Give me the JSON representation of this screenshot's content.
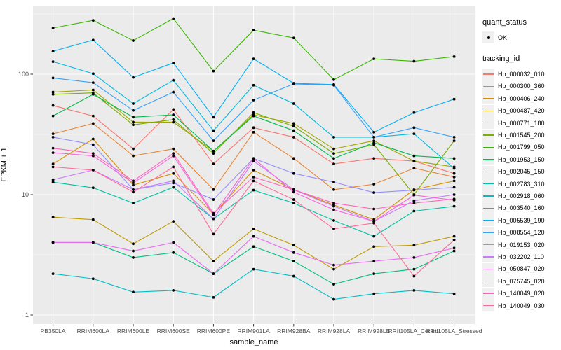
{
  "panel": {
    "bg_color": "#EBEBEB",
    "grid_color": "#FFFFFF",
    "axis_text_color": "#4D4D4D",
    "tick_color": "#333333",
    "point_color": "#000000"
  },
  "legend": {
    "quant_status_title": "quant_status",
    "quant_status_items": [
      {
        "label": "OK",
        "symbol": "black-point"
      }
    ],
    "tracking_title": "tracking_id"
  },
  "chart_data": {
    "type": "line",
    "title": "",
    "xlabel": "sample_name",
    "ylabel": "FPKM + 1",
    "y_scale": "log10",
    "y_ticks": [
      1,
      10,
      100
    ],
    "y_tick_labels": [
      "1",
      "10",
      "100"
    ],
    "y_minor_ticks": [
      3.162,
      31.62,
      316.2
    ],
    "ylim": [
      1,
      450
    ],
    "grid": true,
    "legend_position": "right",
    "categories": [
      "PB350LA",
      "RRIM600LA",
      "RRIM600LE",
      "RRIM600SE",
      "RRIM600PE",
      "RRIM901LA",
      "RRIM928BA",
      "RRIM928LA",
      "RRIM928LE",
      "RRII105LA_Control",
      "RRII105LA_Stressed"
    ],
    "series": [
      {
        "name": "Hb_000032_010",
        "color": "#F8766D",
        "values": [
          55,
          45,
          24,
          51,
          18,
          36,
          30,
          18,
          20,
          19,
          15
        ]
      },
      {
        "name": "Hb_000300_360",
        "color": "#EA8331",
        "values": [
          32,
          39,
          21,
          24,
          11,
          33,
          20,
          11,
          12.2,
          16.6,
          14
        ]
      },
      {
        "name": "Hb_000406_240",
        "color": "#D89000",
        "values": [
          18,
          29,
          12,
          15,
          6.9,
          16,
          11,
          8.2,
          6.2,
          11,
          13
        ]
      },
      {
        "name": "Hb_000487_420",
        "color": "#C09B00",
        "values": [
          6.5,
          6.2,
          3.9,
          6.0,
          2.8,
          5.2,
          3.8,
          2.4,
          3.7,
          3.8,
          4.5
        ]
      },
      {
        "name": "Hb_000771_180",
        "color": "#A3A500",
        "values": [
          71,
          74,
          40,
          40,
          23,
          46,
          39,
          24,
          28,
          19,
          17
        ]
      },
      {
        "name": "Hb_001545_200",
        "color": "#7CAE00",
        "values": [
          68,
          70,
          38,
          42,
          22,
          48,
          37,
          22,
          26,
          10,
          28
        ]
      },
      {
        "name": "Hb_001799_050",
        "color": "#39B600",
        "values": [
          242,
          280,
          190,
          290,
          106,
          232,
          200,
          90,
          134,
          128,
          140
        ]
      },
      {
        "name": "Hb_001953_150",
        "color": "#00BB4E",
        "values": [
          45,
          68,
          44,
          46,
          23,
          45,
          34,
          20,
          27,
          21,
          20
        ]
      },
      {
        "name": "Hb_002045_150",
        "color": "#00BF7D",
        "values": [
          4.0,
          4.0,
          3.0,
          3.3,
          2.2,
          3.7,
          2.8,
          1.8,
          2.2,
          2.4,
          3.4
        ]
      },
      {
        "name": "Hb_002783_310",
        "color": "#00C1A3",
        "values": [
          12.7,
          11.4,
          8.5,
          11.5,
          6.3,
          10.9,
          8.5,
          6.1,
          4.5,
          7.3,
          8.0
        ]
      },
      {
        "name": "Hb_002918_060",
        "color": "#00BFC4",
        "values": [
          2.2,
          2.0,
          1.55,
          1.6,
          1.4,
          2.4,
          2.1,
          1.35,
          1.5,
          1.6,
          1.5
        ]
      },
      {
        "name": "Hb_003540_160",
        "color": "#00BAE0",
        "values": [
          127,
          101,
          57,
          89,
          34,
          81,
          57,
          30,
          30,
          32,
          16.5
        ]
      },
      {
        "name": "Hb_005539_190",
        "color": "#00B0F6",
        "values": [
          155,
          192,
          94,
          124,
          44,
          134,
          84,
          82,
          33,
          48,
          62
        ]
      },
      {
        "name": "Hb_008554_120",
        "color": "#35A2FF",
        "values": [
          93,
          85,
          50,
          71,
          28,
          61,
          83,
          81,
          30,
          36,
          30
        ]
      },
      {
        "name": "Hb_019153_020",
        "color": "#9590FF",
        "values": [
          30,
          26,
          11,
          12.5,
          9.1,
          20,
          15,
          12.7,
          10.4,
          10.9,
          11.5
        ]
      },
      {
        "name": "Hb_032202_110",
        "color": "#C77CFF",
        "values": [
          13.3,
          16,
          11,
          13,
          6.3,
          19,
          11,
          8.0,
          6.0,
          8.9,
          10
        ]
      },
      {
        "name": "Hb_050847_020",
        "color": "#E76BF3",
        "values": [
          4.0,
          4.0,
          3.4,
          4.0,
          2.2,
          4.5,
          3.3,
          2.6,
          2.8,
          3.0,
          3.6
        ]
      },
      {
        "name": "Hb_075745_020",
        "color": "#FA62DB",
        "values": [
          22.3,
          21,
          12.5,
          21,
          6.8,
          20,
          10.5,
          7.5,
          6.0,
          9.9,
          9.0
        ]
      },
      {
        "name": "Hb_140049_020",
        "color": "#FF62BC",
        "values": [
          24.3,
          22,
          13,
          22,
          7.0,
          14,
          11,
          8.5,
          7.6,
          8.5,
          9.2
        ]
      },
      {
        "name": "Hb_140049_030",
        "color": "#FF6A98",
        "values": [
          17,
          16,
          10.5,
          17,
          4.7,
          13,
          9.1,
          5.2,
          5.8,
          2.1,
          4.2
        ]
      }
    ]
  }
}
